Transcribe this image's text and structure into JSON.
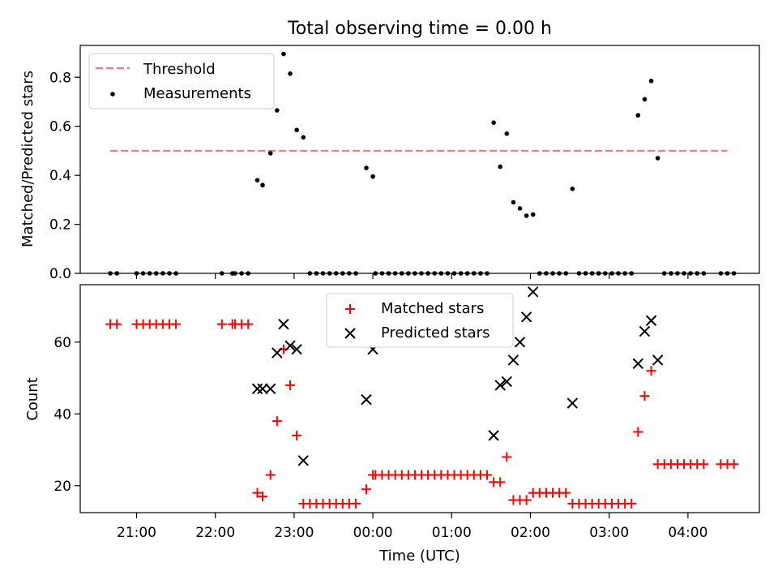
{
  "title": "Total observing time = 0.00 h",
  "chart_data": [
    {
      "type": "scatter",
      "ylabel": "Matched/Predicted stars",
      "ylim": [
        0,
        0.93
      ],
      "yticks": [
        "0.0",
        "0.2",
        "0.4",
        "0.6",
        "0.8"
      ],
      "legend_position": "upper-left",
      "threshold": {
        "name": "Threshold",
        "value": 0.5,
        "x_range": [
          "20:40",
          "04:30"
        ],
        "color": "#ff7070"
      },
      "measurements": {
        "name": "Measurements",
        "color": "#000000",
        "points": [
          [
            "20:40",
            0
          ],
          [
            "20:45",
            0
          ],
          [
            "21:00",
            0
          ],
          [
            "21:05",
            0
          ],
          [
            "21:10",
            0
          ],
          [
            "21:15",
            0
          ],
          [
            "21:20",
            0
          ],
          [
            "21:25",
            0
          ],
          [
            "21:30",
            0
          ],
          [
            "22:05",
            0
          ],
          [
            "22:13",
            0
          ],
          [
            "22:15",
            0
          ],
          [
            "22:20",
            0
          ],
          [
            "22:25",
            0
          ],
          [
            "22:32",
            0.38
          ],
          [
            "22:36",
            0.36
          ],
          [
            "22:42",
            0.49
          ],
          [
            "22:47",
            0.665
          ],
          [
            "22:52",
            0.895
          ],
          [
            "22:57",
            0.815
          ],
          [
            "23:02",
            0.585
          ],
          [
            "23:07",
            0.555
          ],
          [
            "23:12",
            0
          ],
          [
            "23:17",
            0
          ],
          [
            "23:22",
            0
          ],
          [
            "23:27",
            0
          ],
          [
            "23:32",
            0
          ],
          [
            "23:37",
            0
          ],
          [
            "23:42",
            0
          ],
          [
            "23:47",
            0
          ],
          [
            "23:55",
            0.43
          ],
          [
            "00:00",
            0.395
          ],
          [
            "00:02",
            0
          ],
          [
            "00:07",
            0
          ],
          [
            "00:12",
            0
          ],
          [
            "00:17",
            0
          ],
          [
            "00:22",
            0
          ],
          [
            "00:27",
            0
          ],
          [
            "00:32",
            0
          ],
          [
            "00:37",
            0
          ],
          [
            "00:42",
            0
          ],
          [
            "00:47",
            0
          ],
          [
            "00:52",
            0
          ],
          [
            "00:57",
            0
          ],
          [
            "01:02",
            0
          ],
          [
            "01:07",
            0
          ],
          [
            "01:12",
            0
          ],
          [
            "01:17",
            0
          ],
          [
            "01:22",
            0
          ],
          [
            "01:27",
            0
          ],
          [
            "01:32",
            0.615
          ],
          [
            "01:37",
            0.435
          ],
          [
            "01:42",
            0.57
          ],
          [
            "01:47",
            0.29
          ],
          [
            "01:52",
            0.265
          ],
          [
            "01:57",
            0.235
          ],
          [
            "02:02",
            0.24
          ],
          [
            "02:07",
            0
          ],
          [
            "02:12",
            0
          ],
          [
            "02:17",
            0
          ],
          [
            "02:22",
            0
          ],
          [
            "02:27",
            0
          ],
          [
            "02:32",
            0.345
          ],
          [
            "02:37",
            0
          ],
          [
            "02:42",
            0
          ],
          [
            "02:47",
            0
          ],
          [
            "02:52",
            0
          ],
          [
            "02:57",
            0
          ],
          [
            "03:02",
            0
          ],
          [
            "03:07",
            0
          ],
          [
            "03:12",
            0
          ],
          [
            "03:17",
            0
          ],
          [
            "03:22",
            0.645
          ],
          [
            "03:27",
            0.71
          ],
          [
            "03:32",
            0.785
          ],
          [
            "03:37",
            0.47
          ],
          [
            "03:42",
            0
          ],
          [
            "03:47",
            0
          ],
          [
            "03:52",
            0
          ],
          [
            "03:57",
            0
          ],
          [
            "04:02",
            0
          ],
          [
            "04:07",
            0
          ],
          [
            "04:12",
            0
          ],
          [
            "04:25",
            0
          ],
          [
            "04:30",
            0
          ],
          [
            "04:35",
            0
          ]
        ]
      }
    },
    {
      "type": "scatter",
      "xlabel": "Time (UTC)",
      "ylabel": "Count",
      "ylim": [
        12.5,
        76
      ],
      "yticks": [
        "20",
        "40",
        "60"
      ],
      "xticks": [
        "21:00",
        "22:00",
        "23:00",
        "00:00",
        "01:00",
        "02:00",
        "03:00",
        "04:00"
      ],
      "legend_position": "upper-center",
      "series": [
        {
          "name": "Matched stars",
          "marker": "plus",
          "color": "#ff0000",
          "points": [
            [
              "20:40",
              65
            ],
            [
              "20:45",
              65
            ],
            [
              "21:00",
              65
            ],
            [
              "21:05",
              65
            ],
            [
              "21:10",
              65
            ],
            [
              "21:15",
              65
            ],
            [
              "21:20",
              65
            ],
            [
              "21:25",
              65
            ],
            [
              "21:30",
              65
            ],
            [
              "22:05",
              65
            ],
            [
              "22:13",
              65
            ],
            [
              "22:15",
              65
            ],
            [
              "22:20",
              65
            ],
            [
              "22:25",
              65
            ],
            [
              "22:32",
              18
            ],
            [
              "22:36",
              17
            ],
            [
              "22:42",
              23
            ],
            [
              "22:47",
              38
            ],
            [
              "22:52",
              58
            ],
            [
              "22:57",
              48
            ],
            [
              "23:02",
              34
            ],
            [
              "23:07",
              15
            ],
            [
              "23:12",
              15
            ],
            [
              "23:17",
              15
            ],
            [
              "23:22",
              15
            ],
            [
              "23:27",
              15
            ],
            [
              "23:32",
              15
            ],
            [
              "23:37",
              15
            ],
            [
              "23:42",
              15
            ],
            [
              "23:47",
              15
            ],
            [
              "23:55",
              19
            ],
            [
              "00:00",
              23
            ],
            [
              "00:02",
              23
            ],
            [
              "00:07",
              23
            ],
            [
              "00:12",
              23
            ],
            [
              "00:17",
              23
            ],
            [
              "00:22",
              23
            ],
            [
              "00:27",
              23
            ],
            [
              "00:32",
              23
            ],
            [
              "00:37",
              23
            ],
            [
              "00:42",
              23
            ],
            [
              "00:47",
              23
            ],
            [
              "00:52",
              23
            ],
            [
              "00:57",
              23
            ],
            [
              "01:02",
              23
            ],
            [
              "01:07",
              23
            ],
            [
              "01:12",
              23
            ],
            [
              "01:17",
              23
            ],
            [
              "01:22",
              23
            ],
            [
              "01:27",
              23
            ],
            [
              "01:32",
              21
            ],
            [
              "01:37",
              21
            ],
            [
              "01:42",
              28
            ],
            [
              "01:47",
              16
            ],
            [
              "01:52",
              16
            ],
            [
              "01:57",
              16
            ],
            [
              "02:02",
              18
            ],
            [
              "02:07",
              18
            ],
            [
              "02:12",
              18
            ],
            [
              "02:17",
              18
            ],
            [
              "02:22",
              18
            ],
            [
              "02:27",
              18
            ],
            [
              "02:32",
              15
            ],
            [
              "02:37",
              15
            ],
            [
              "02:42",
              15
            ],
            [
              "02:47",
              15
            ],
            [
              "02:52",
              15
            ],
            [
              "02:57",
              15
            ],
            [
              "03:02",
              15
            ],
            [
              "03:07",
              15
            ],
            [
              "03:12",
              15
            ],
            [
              "03:17",
              15
            ],
            [
              "03:22",
              35
            ],
            [
              "03:27",
              45
            ],
            [
              "03:32",
              52
            ],
            [
              "03:37",
              26
            ],
            [
              "03:42",
              26
            ],
            [
              "03:47",
              26
            ],
            [
              "03:52",
              26
            ],
            [
              "03:57",
              26
            ],
            [
              "04:02",
              26
            ],
            [
              "04:07",
              26
            ],
            [
              "04:12",
              26
            ],
            [
              "04:25",
              26
            ],
            [
              "04:30",
              26
            ],
            [
              "04:35",
              26
            ]
          ]
        },
        {
          "name": "Predicted stars",
          "marker": "x",
          "color": "#000000",
          "points": [
            [
              "22:32",
              47
            ],
            [
              "22:36",
              47
            ],
            [
              "22:42",
              47
            ],
            [
              "22:47",
              57
            ],
            [
              "22:52",
              65
            ],
            [
              "22:57",
              59
            ],
            [
              "23:02",
              58
            ],
            [
              "23:07",
              27
            ],
            [
              "23:55",
              44
            ],
            [
              "00:00",
              58
            ],
            [
              "01:32",
              34
            ],
            [
              "01:37",
              48
            ],
            [
              "01:42",
              49
            ],
            [
              "01:47",
              55
            ],
            [
              "01:52",
              60
            ],
            [
              "01:57",
              67
            ],
            [
              "02:02",
              74
            ],
            [
              "02:32",
              43
            ],
            [
              "03:22",
              54
            ],
            [
              "03:27",
              63
            ],
            [
              "03:32",
              66
            ],
            [
              "03:37",
              55
            ]
          ]
        }
      ]
    }
  ]
}
